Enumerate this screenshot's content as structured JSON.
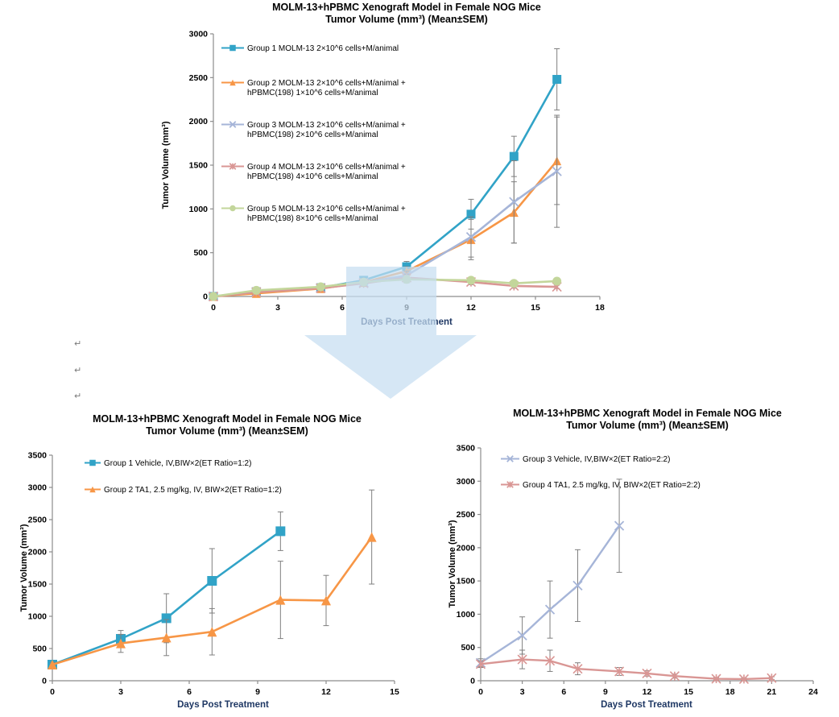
{
  "page": {
    "background": "#ffffff"
  },
  "return_marks": {
    "glyph": "↵"
  },
  "arrow": {
    "label": "down-arrow",
    "fill_color": "#c6def1",
    "opacity": 0.72
  },
  "palette": {
    "teal": "#31a3c7",
    "orange": "#f79646",
    "periwinkle": "#a6b5d8",
    "pink": "#d99694",
    "green": "#c3d69b",
    "error_bar": "#7f7f7f",
    "axis": "#8c8c8c",
    "axis_label": "#1f3864",
    "tick_label": "#000000"
  },
  "chart_data": [
    {
      "id": "chart-top",
      "type": "line",
      "title_lines": [
        "MOLM-13+hPBMC Xenograft Model in Female NOG Mice",
        "Tumor Volume (mm³) (Mean±SEM)"
      ],
      "xlabel": "Days Post Treatment",
      "ylabel": "Tumor Volume (mm³)",
      "xlim": [
        0,
        18
      ],
      "xtick_step": 3,
      "ylim": [
        0,
        3000
      ],
      "ytick_step": 500,
      "grid": false,
      "legend_position": "upper-left-inside",
      "series": [
        {
          "name": "Group 1",
          "label_lines": [
            "Group 1 MOLM-13  2×10^6 cells+M/animal"
          ],
          "color": "#31a3c7",
          "marker": "square",
          "x": [
            0,
            2,
            5,
            7,
            9,
            12,
            14,
            16
          ],
          "values": [
            0,
            55,
            100,
            185,
            340,
            940,
            1600,
            2480
          ],
          "err": [
            10,
            15,
            20,
            30,
            60,
            170,
            230,
            350
          ]
        },
        {
          "name": "Group 2",
          "label_lines": [
            "Group 2 MOLM-13  2×10^6 cells+M/animal +",
            "hPBMC(198) 1×10^6 cells+M/animal"
          ],
          "color": "#f79646",
          "marker": "triangle",
          "x": [
            0,
            2,
            5,
            7,
            9,
            12,
            14,
            16
          ],
          "values": [
            0,
            35,
            90,
            160,
            290,
            650,
            960,
            1550
          ],
          "err": [
            10,
            15,
            20,
            30,
            50,
            230,
            350,
            500
          ]
        },
        {
          "name": "Group 3",
          "label_lines": [
            "Group 3 MOLM-13  2×10^6 cells+M/animal +",
            "hPBMC(198) 2×10^6 cells+M/animal"
          ],
          "color": "#a6b5d8",
          "marker": "x",
          "x": [
            0,
            2,
            5,
            7,
            9,
            12,
            14,
            16
          ],
          "values": [
            0,
            50,
            95,
            160,
            240,
            680,
            1080,
            1430
          ],
          "err": [
            10,
            15,
            20,
            30,
            50,
            230,
            470,
            640
          ]
        },
        {
          "name": "Group 4",
          "label_lines": [
            "Group 4 MOLM-13  2×10^6 cells+M/animal +",
            "hPBMC(198) 4×10^6 cells+M/animal"
          ],
          "color": "#d99694",
          "marker": "star",
          "x": [
            0,
            2,
            5,
            7,
            9,
            12,
            14,
            16
          ],
          "values": [
            0,
            50,
            95,
            150,
            215,
            165,
            120,
            110
          ],
          "err": [
            8,
            12,
            18,
            25,
            40,
            30,
            25,
            20
          ]
        },
        {
          "name": "Group 5",
          "label_lines": [
            "Group 5 MOLM-13  2×10^6 cells+M/animal +",
            "hPBMC(198) 8×10^6 cells+M/animal"
          ],
          "color": "#c3d69b",
          "marker": "circle",
          "x": [
            0,
            2,
            5,
            7,
            9,
            12,
            14,
            16
          ],
          "values": [
            0,
            70,
            110,
            165,
            195,
            185,
            150,
            175
          ],
          "err": [
            8,
            12,
            18,
            25,
            40,
            30,
            25,
            20
          ]
        }
      ]
    },
    {
      "id": "chart-bl",
      "type": "line",
      "title_lines": [
        "MOLM-13+hPBMC Xenograft Model in Female NOG Mice",
        "Tumor Volume (mm³) (Mean±SEM)"
      ],
      "xlabel": "Days Post Treatment",
      "ylabel": "Tumor Volume (mm³)",
      "xlim": [
        0,
        15
      ],
      "xtick_step": 3,
      "ylim": [
        0,
        3500
      ],
      "ytick_step": 500,
      "grid": false,
      "legend_position": "upper-left-inside",
      "series": [
        {
          "name": "Group 1",
          "label_lines": [
            "Group 1 Vehicle, IV,BIW×2(ET Ratio=1:2)"
          ],
          "color": "#31a3c7",
          "marker": "square",
          "x": [
            0,
            3,
            5,
            7,
            10
          ],
          "values": [
            250,
            650,
            970,
            1550,
            2320
          ],
          "err": [
            35,
            130,
            380,
            500,
            300
          ]
        },
        {
          "name": "Group 2",
          "label_lines": [
            "Group 2 TA1, 2.5 mg/kg, IV, BIW×2(ET Ratio=1:2)"
          ],
          "color": "#f79646",
          "marker": "triangle",
          "x": [
            0,
            3,
            5,
            7,
            10,
            12,
            14
          ],
          "values": [
            250,
            580,
            670,
            760,
            1255,
            1245,
            2230
          ],
          "err": [
            35,
            140,
            280,
            360,
            600,
            390,
            730
          ]
        }
      ]
    },
    {
      "id": "chart-br",
      "type": "line",
      "title_lines": [
        "MOLM-13+hPBMC Xenograft Model in Female NOG Mice",
        "Tumor Volume (mm³) (Mean±SEM)"
      ],
      "xlabel": "Days Post Treatment",
      "ylabel": "Tumor Volume (mm³)",
      "xlim": [
        0,
        24
      ],
      "xtick_step": 3,
      "ylim": [
        0,
        3500
      ],
      "ytick_step": 500,
      "grid": false,
      "legend_position": "upper-left-inside",
      "series": [
        {
          "name": "Group 3",
          "label_lines": [
            "Group 3 Vehicle, IV,BIW×2(ET Ratio=2:2)"
          ],
          "color": "#a6b5d8",
          "marker": "x",
          "x": [
            0,
            3,
            5,
            7,
            10
          ],
          "values": [
            270,
            680,
            1070,
            1430,
            2330
          ],
          "err": [
            60,
            280,
            430,
            540,
            700
          ]
        },
        {
          "name": "Group 4",
          "label_lines": [
            "Group 4 TA1, 2.5 mg/kg, IV, BIW×2(ET Ratio=2:2)"
          ],
          "color": "#d99694",
          "marker": "star",
          "x": [
            0,
            3,
            5,
            7,
            10,
            12,
            14,
            17,
            19,
            21
          ],
          "values": [
            250,
            320,
            300,
            180,
            140,
            110,
            70,
            30,
            25,
            40
          ],
          "err": [
            50,
            140,
            160,
            90,
            60,
            40,
            30,
            20,
            15,
            20
          ]
        }
      ]
    }
  ]
}
